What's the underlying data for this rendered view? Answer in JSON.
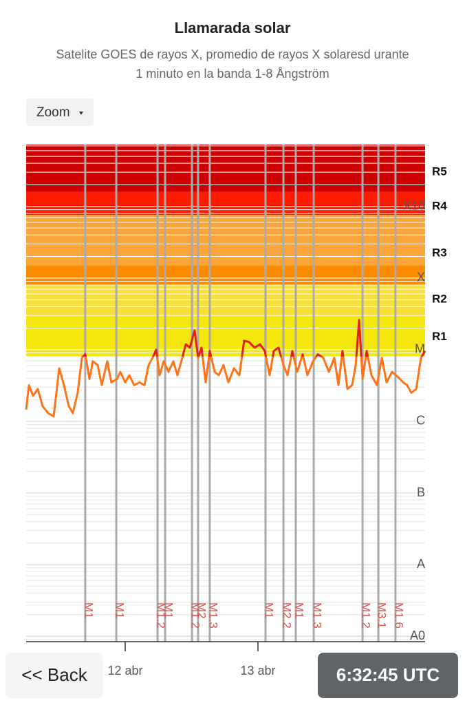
{
  "chart_data": {
    "type": "line",
    "title": "Llamarada solar",
    "subtitle": [
      "Satelite GOES de rayos X, promedio de rayos X solaresd urante",
      "1 minuto en la banda 1-8 Ångström"
    ],
    "log_scale_y": true,
    "minor_grid": true,
    "xlim": [
      11.254,
      14.259
    ],
    "xticks": [
      {
        "value": 12,
        "label": "12 abr"
      },
      {
        "value": 13,
        "label": "13 abr"
      }
    ],
    "ylim": [
      8.4e-10,
      0.0073
    ],
    "yticks": [
      {
        "value": 1e-09,
        "label": "A0"
      },
      {
        "value": 1e-08,
        "label": "A"
      },
      {
        "value": 1e-07,
        "label": "B"
      },
      {
        "value": 1e-06,
        "label": "C"
      },
      {
        "value": 1e-05,
        "label": "M"
      },
      {
        "value": 0.0001,
        "label": "X"
      },
      {
        "value": 0.001,
        "label": "X10"
      }
    ],
    "bands": [
      {
        "from": 8e-06,
        "to": 3e-05,
        "color": "#f5e60c"
      },
      {
        "from": 3e-05,
        "to": 8e-05,
        "color": "#f7e03c"
      },
      {
        "from": 8e-05,
        "to": 0.00015,
        "color": "#fb8c00"
      },
      {
        "from": 0.00015,
        "to": 0.00076,
        "color": "#fca53a"
      },
      {
        "from": 0.00076,
        "to": 0.0016,
        "color": "#ff1a00"
      },
      {
        "from": 0.0016,
        "to": 0.0073,
        "color": "#cc0000"
      }
    ],
    "r_levels": [
      {
        "label": "R1",
        "value": 1.5e-05
      },
      {
        "label": "R2",
        "value": 5e-05
      },
      {
        "label": "R3",
        "value": 0.00022
      },
      {
        "label": "R4",
        "value": 0.001
      },
      {
        "label": "R5",
        "value": 0.003
      }
    ],
    "series": [
      {
        "color": "#ff7417",
        "flare_color": "#e0201a",
        "x": [
          11.254,
          11.275,
          11.306,
          11.342,
          11.378,
          11.42,
          11.461,
          11.503,
          11.534,
          11.575,
          11.606,
          11.642,
          11.674,
          11.699,
          11.731,
          11.756,
          11.793,
          11.824,
          11.865,
          11.896,
          11.938,
          11.964,
          12.0,
          12.031,
          12.067,
          12.109,
          12.145,
          12.176,
          12.207,
          12.233,
          12.259,
          12.29,
          12.326,
          12.363,
          12.394,
          12.43,
          12.456,
          12.487,
          12.523,
          12.549,
          12.575,
          12.606,
          12.637,
          12.674,
          12.705,
          12.741,
          12.777,
          12.819,
          12.86,
          12.896,
          12.933,
          12.974,
          13.016,
          13.052,
          13.088,
          13.119,
          13.155,
          13.192,
          13.223,
          13.259,
          13.295,
          13.337,
          13.373,
          13.415,
          13.451,
          13.492,
          13.534,
          13.575,
          13.606,
          13.637,
          13.674,
          13.71,
          13.736,
          13.762,
          13.788,
          13.819,
          13.855,
          13.896,
          13.933,
          13.969,
          14.01,
          14.052,
          14.093,
          14.124,
          14.155,
          14.192,
          14.228,
          14.259
        ],
        "values": [
          1.46e-06,
          3.2e-06,
          2.27e-06,
          2.83e-06,
          1.63e-06,
          1.3e-06,
          1.17e-06,
          5.5e-06,
          3.5e-06,
          1.63e-06,
          1.3e-06,
          2.5e-06,
          7.7e-06,
          8.6e-06,
          3.9e-06,
          6.9e-06,
          6.1e-06,
          3.2e-06,
          6.9e-06,
          3.5e-06,
          3.9e-06,
          4.9e-06,
          3.5e-06,
          4.4e-06,
          3.2e-06,
          3.5e-06,
          3.2e-06,
          6.1e-06,
          7.7e-06,
          1e-05,
          4.4e-06,
          6.9e-06,
          4.9e-06,
          6.9e-06,
          4.4e-06,
          7.7e-06,
          1.19e-05,
          1.07e-05,
          1.86e-05,
          7.7e-06,
          1.07e-05,
          3.5e-06,
          9.6e-06,
          4.9e-06,
          4.4e-06,
          6.1e-06,
          3.5e-06,
          5.5e-06,
          4.4e-06,
          1.33e-05,
          1.28e-05,
          1.07e-05,
          1.19e-05,
          9.6e-06,
          4.4e-06,
          9.6e-06,
          1.07e-05,
          6.1e-06,
          4.4e-06,
          9.6e-06,
          4.9e-06,
          8.6e-06,
          4.4e-06,
          6.9e-06,
          8.6e-06,
          7.7e-06,
          4.9e-06,
          7.7e-06,
          3.2e-06,
          9.6e-06,
          2.83e-06,
          3.2e-06,
          6.1e-06,
          2.6e-05,
          3.9e-06,
          9.6e-06,
          4.4e-06,
          3.2e-06,
          7.7e-06,
          3.5e-06,
          4.9e-06,
          4.2e-06,
          3.5e-06,
          3.2e-06,
          2.5e-06,
          2.83e-06,
          7.7e-06,
          9.6e-06
        ]
      }
    ],
    "flares": [
      {
        "x": 11.699,
        "label": "M1"
      },
      {
        "x": 11.933,
        "label": "M1"
      },
      {
        "x": 12.244,
        "label": "M1.2"
      },
      {
        "x": 12.301,
        "label": "M1"
      },
      {
        "x": 12.503,
        "label": "M1.2"
      },
      {
        "x": 12.549,
        "label": "M2"
      },
      {
        "x": 12.637,
        "label": "M1.3"
      },
      {
        "x": 13.057,
        "label": "M1"
      },
      {
        "x": 13.192,
        "label": "M2.2"
      },
      {
        "x": 13.285,
        "label": "M1"
      },
      {
        "x": 13.42,
        "label": "M1.3"
      },
      {
        "x": 13.788,
        "label": "M1.2"
      },
      {
        "x": 13.907,
        "label": "M3.1"
      },
      {
        "x": 14.036,
        "label": "M1.6"
      }
    ],
    "flare_line_color": "#aaaaaa",
    "flare_label_color": "#d9534f"
  },
  "ui": {
    "zoom": "Zoom",
    "back": "<< Back",
    "clock": "6:32:45 UTC"
  }
}
